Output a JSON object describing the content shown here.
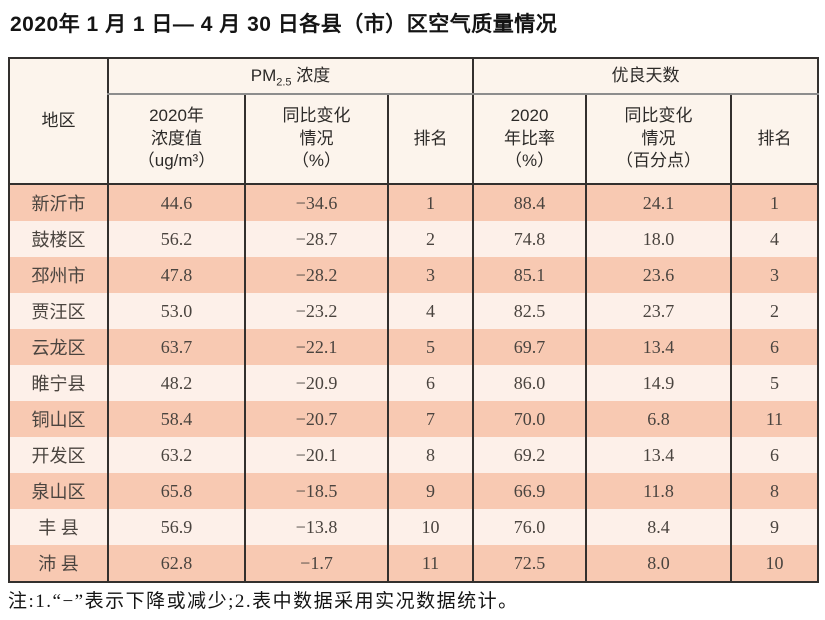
{
  "title": "2020年 1 月 1 日— 4 月 30 日各县（市）区空气质量情况",
  "table": {
    "region_header": "地区",
    "pm_group": {
      "main": "PM",
      "sub": "2.5",
      "rest": " 浓度"
    },
    "good_group": "优良天数",
    "subheaders": [
      "2020年\n浓度值\n（ug/m³）",
      "同比变化\n情况\n（%）",
      "排名",
      "2020\n年比率\n（%）",
      "同比变化\n情况\n（百分点）",
      "排名"
    ],
    "rows": [
      {
        "region": "新沂市",
        "pm_value": "44.6",
        "pm_change": "−34.6",
        "pm_rank": "1",
        "good_rate": "88.4",
        "good_change": "24.1",
        "good_rank": "1"
      },
      {
        "region": "鼓楼区",
        "pm_value": "56.2",
        "pm_change": "−28.7",
        "pm_rank": "2",
        "good_rate": "74.8",
        "good_change": "18.0",
        "good_rank": "4"
      },
      {
        "region": "邳州市",
        "pm_value": "47.8",
        "pm_change": "−28.2",
        "pm_rank": "3",
        "good_rate": "85.1",
        "good_change": "23.6",
        "good_rank": "3"
      },
      {
        "region": "贾汪区",
        "pm_value": "53.0",
        "pm_change": "−23.2",
        "pm_rank": "4",
        "good_rate": "82.5",
        "good_change": "23.7",
        "good_rank": "2"
      },
      {
        "region": "云龙区",
        "pm_value": "63.7",
        "pm_change": "−22.1",
        "pm_rank": "5",
        "good_rate": "69.7",
        "good_change": "13.4",
        "good_rank": "6"
      },
      {
        "region": "睢宁县",
        "pm_value": "48.2",
        "pm_change": "−20.9",
        "pm_rank": "6",
        "good_rate": "86.0",
        "good_change": "14.9",
        "good_rank": "5"
      },
      {
        "region": "铜山区",
        "pm_value": "58.4",
        "pm_change": "−20.7",
        "pm_rank": "7",
        "good_rate": "70.0",
        "good_change": "6.8",
        "good_rank": "11"
      },
      {
        "region": "开发区",
        "pm_value": "63.2",
        "pm_change": "−20.1",
        "pm_rank": "8",
        "good_rate": "69.2",
        "good_change": "13.4",
        "good_rank": "6"
      },
      {
        "region": "泉山区",
        "pm_value": "65.8",
        "pm_change": "−18.5",
        "pm_rank": "9",
        "good_rate": "66.9",
        "good_change": "11.8",
        "good_rank": "8"
      },
      {
        "region": "丰 县",
        "pm_value": "56.9",
        "pm_change": "−13.8",
        "pm_rank": "10",
        "good_rate": "76.0",
        "good_change": "8.4",
        "good_rank": "9"
      },
      {
        "region": "沛 县",
        "pm_value": "62.8",
        "pm_change": "−1.7",
        "pm_rank": "11",
        "good_rate": "72.5",
        "good_change": "8.0",
        "good_rank": "10"
      }
    ]
  },
  "note": "注:1.“−”表示下降或减少;2.表中数据采用实况数据统计。",
  "colors": {
    "row_salmon": "#f8c9b2",
    "row_light": "#fdf0e9",
    "header_bg": "#fcf4ec",
    "grid_line": "#33302e",
    "group_underline": "#8d8d8d"
  }
}
